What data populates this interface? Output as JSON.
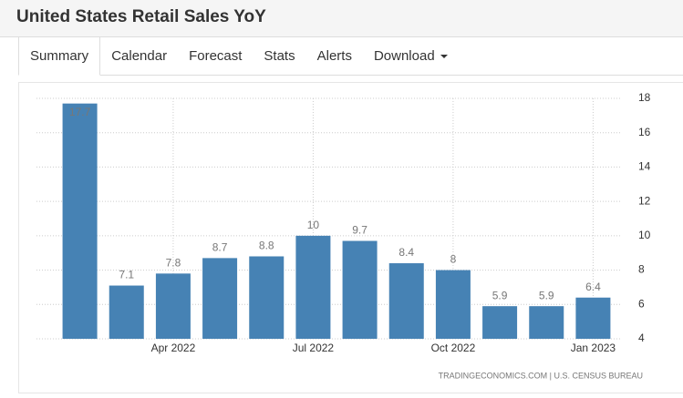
{
  "header": {
    "title": "United States Retail Sales YoY"
  },
  "tabs": [
    "Summary",
    "Calendar",
    "Forecast",
    "Stats",
    "Alerts",
    "Download"
  ],
  "chart_data": {
    "type": "bar",
    "categories": [
      null,
      null,
      "Apr 2022",
      null,
      null,
      "Jul 2022",
      null,
      null,
      "Oct 2022",
      null,
      null,
      "Jan 2023"
    ],
    "values": [
      17.7,
      7.1,
      7.8,
      8.7,
      8.8,
      10,
      9.7,
      8.4,
      8,
      5.9,
      5.9,
      6.4
    ],
    "color": "#4682b4",
    "ylim": [
      4,
      18
    ],
    "yticks": [
      4,
      6,
      8,
      10,
      12,
      14,
      16,
      18
    ],
    "grid": true,
    "source": "TRADINGECONOMICS.COM | U.S. CENSUS BUREAU"
  }
}
